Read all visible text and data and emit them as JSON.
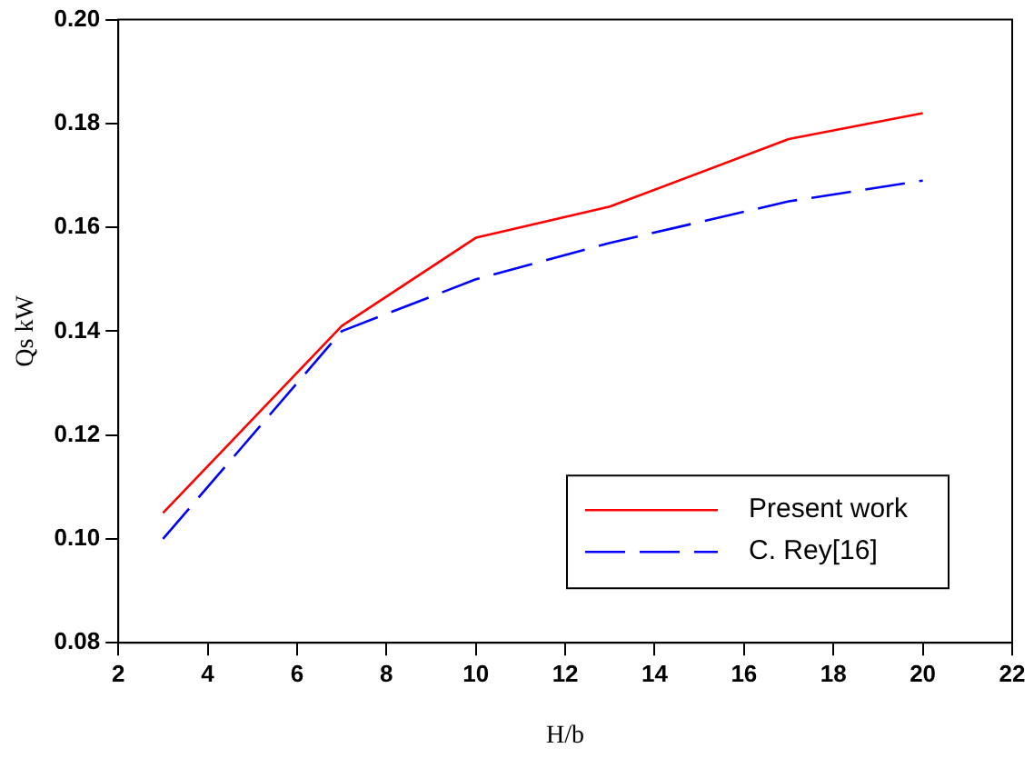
{
  "chart_data": {
    "type": "line",
    "xlabel": "H/b",
    "ylabel": "Qs kW",
    "x": [
      3,
      7,
      10,
      13,
      17,
      20
    ],
    "series": [
      {
        "name": "Present work",
        "color": "#ff0000",
        "line_style": "solid",
        "values": [
          0.105,
          0.141,
          0.158,
          0.164,
          0.177,
          0.182
        ]
      },
      {
        "name": "C. Rey[16]",
        "color": "#0000ff",
        "line_style": "dashed",
        "values": [
          0.1,
          0.14,
          0.15,
          0.157,
          0.165,
          0.169
        ]
      }
    ],
    "xlim": [
      2,
      22
    ],
    "xticks": [
      2,
      4,
      6,
      8,
      10,
      12,
      14,
      16,
      18,
      20,
      22
    ],
    "ylim": [
      0.08,
      0.2
    ],
    "yticks": [
      {
        "value": 0.08,
        "label": "0.08"
      },
      {
        "value": 0.1,
        "label": "0.10"
      },
      {
        "value": 0.12,
        "label": "0.12"
      },
      {
        "value": 0.14,
        "label": "0.14"
      },
      {
        "value": 0.16,
        "label": "0.16"
      },
      {
        "value": 0.18,
        "label": "0.18"
      },
      {
        "value": 0.2,
        "label": "0.20"
      }
    ],
    "grid": false,
    "legend": "bottom right",
    "marker": "none"
  }
}
